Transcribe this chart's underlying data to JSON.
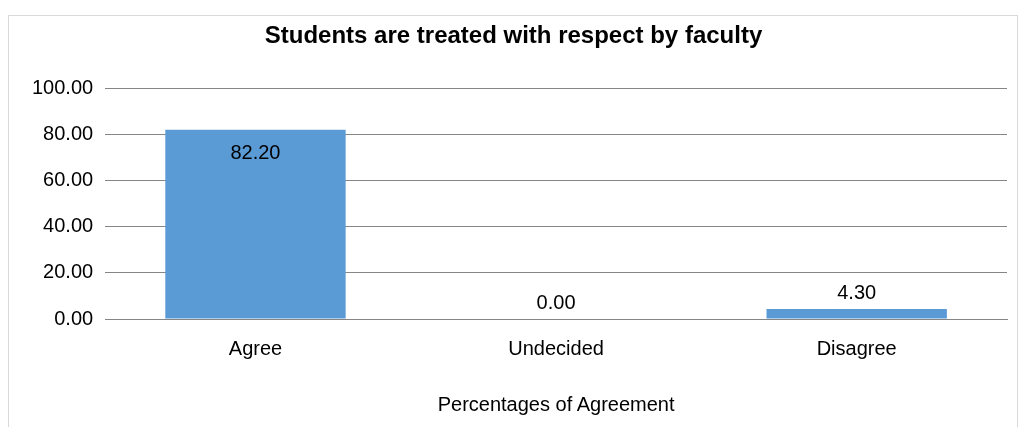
{
  "chart_data": {
    "type": "bar",
    "title": "Students are treated with respect by faculty",
    "xlabel": "Percentages of Agreement",
    "categories": [
      "Agree",
      "Undecided",
      "Disagree"
    ],
    "values": [
      82.2,
      0,
      4.3
    ],
    "color": "#5b9bd5",
    "value_labels": [
      "82.20",
      "0.00",
      "4.30"
    ],
    "ylim": [
      0,
      100
    ],
    "yticks": [
      {
        "value": 0,
        "label": "0.00"
      },
      {
        "value": 20,
        "label": "20.00"
      },
      {
        "value": 40,
        "label": "40.00"
      },
      {
        "value": 60,
        "label": "60.00"
      },
      {
        "value": 80,
        "label": "80.00"
      },
      {
        "value": 100,
        "label": "100.00"
      }
    ],
    "grid": "y",
    "legend": false
  }
}
